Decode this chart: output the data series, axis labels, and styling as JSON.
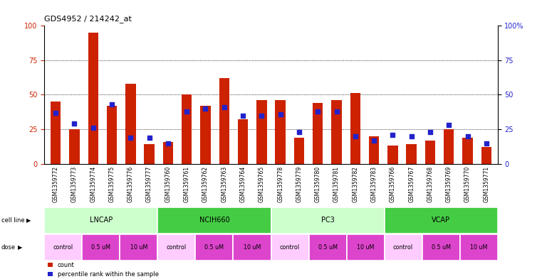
{
  "title": "GDS4952 / 214242_at",
  "samples": [
    "GSM1359772",
    "GSM1359773",
    "GSM1359774",
    "GSM1359775",
    "GSM1359776",
    "GSM1359777",
    "GSM1359760",
    "GSM1359761",
    "GSM1359762",
    "GSM1359763",
    "GSM1359764",
    "GSM1359765",
    "GSM1359778",
    "GSM1359779",
    "GSM1359780",
    "GSM1359781",
    "GSM1359782",
    "GSM1359783",
    "GSM1359766",
    "GSM1359767",
    "GSM1359768",
    "GSM1359769",
    "GSM1359770",
    "GSM1359771"
  ],
  "red_values": [
    45,
    25,
    95,
    42,
    58,
    14,
    16,
    50,
    42,
    62,
    32,
    46,
    46,
    19,
    44,
    46,
    51,
    20,
    13,
    14,
    17,
    25,
    19,
    12
  ],
  "blue_values": [
    37,
    29,
    26,
    43,
    19,
    19,
    15,
    38,
    40,
    41,
    35,
    35,
    36,
    23,
    38,
    38,
    20,
    17,
    21,
    20,
    23,
    28,
    20,
    15
  ],
  "cell_line_groups": [
    {
      "name": "LNCAP",
      "start": 0,
      "end": 6,
      "color": "#ccffcc"
    },
    {
      "name": "NCIH660",
      "start": 6,
      "end": 12,
      "color": "#44cc44"
    },
    {
      "name": "PC3",
      "start": 12,
      "end": 18,
      "color": "#ccffcc"
    },
    {
      "name": "VCAP",
      "start": 18,
      "end": 24,
      "color": "#44cc44"
    }
  ],
  "dose_segments": [
    {
      "label": "control",
      "start": 0,
      "end": 2,
      "color": "#ffccff"
    },
    {
      "label": "0.5 uM",
      "start": 2,
      "end": 4,
      "color": "#dd44cc"
    },
    {
      "label": "10 uM",
      "start": 4,
      "end": 6,
      "color": "#dd44cc"
    },
    {
      "label": "control",
      "start": 6,
      "end": 8,
      "color": "#ffccff"
    },
    {
      "label": "0.5 uM",
      "start": 8,
      "end": 10,
      "color": "#dd44cc"
    },
    {
      "label": "10 uM",
      "start": 10,
      "end": 12,
      "color": "#dd44cc"
    },
    {
      "label": "control",
      "start": 12,
      "end": 14,
      "color": "#ffccff"
    },
    {
      "label": "0.5 uM",
      "start": 14,
      "end": 16,
      "color": "#dd44cc"
    },
    {
      "label": "10 uM",
      "start": 16,
      "end": 18,
      "color": "#dd44cc"
    },
    {
      "label": "control",
      "start": 18,
      "end": 20,
      "color": "#ffccff"
    },
    {
      "label": "0.5 uM",
      "start": 20,
      "end": 22,
      "color": "#dd44cc"
    },
    {
      "label": "10 uM",
      "start": 22,
      "end": 24,
      "color": "#dd44cc"
    }
  ],
  "bar_color": "#cc2200",
  "dot_color": "#2222cc",
  "xtick_bg": "#cccccc",
  "ylim": [
    0,
    100
  ],
  "grid_vals": [
    25,
    50,
    75
  ],
  "yticks": [
    0,
    25,
    50,
    75,
    100
  ],
  "ytick_labels_left": [
    "0",
    "25",
    "50",
    "75",
    "100"
  ],
  "ytick_labels_right": [
    "0",
    "25",
    "50",
    "75",
    "100%"
  ]
}
